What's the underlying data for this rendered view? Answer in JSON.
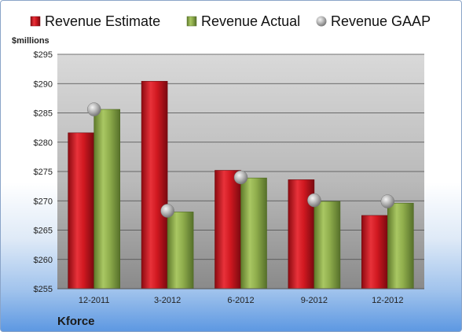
{
  "chart_data": {
    "type": "bar",
    "unit_label": "$millions",
    "company": "Kforce",
    "categories": [
      "12-2011",
      "3-2012",
      "6-2012",
      "9-2012",
      "12-2012"
    ],
    "series": [
      {
        "name": "Revenue Estimate",
        "kind": "bar",
        "color": "#c8101b",
        "values": [
          281.6,
          290.4,
          275.2,
          273.6,
          267.5
        ]
      },
      {
        "name": "Revenue Actual",
        "kind": "bar",
        "color": "#8fad4c",
        "values": [
          285.6,
          268.1,
          273.9,
          269.9,
          269.6
        ]
      },
      {
        "name": "Revenue GAAP",
        "kind": "marker",
        "color": "#a8a8a8",
        "values": [
          285.6,
          268.3,
          274.0,
          270.1,
          269.9
        ]
      }
    ],
    "ylim": [
      255,
      295
    ],
    "y_ticks": [
      "$255",
      "$260",
      "$265",
      "$270",
      "$275",
      "$280",
      "$285",
      "$290",
      "$295"
    ],
    "grid": true,
    "legend": "top"
  }
}
